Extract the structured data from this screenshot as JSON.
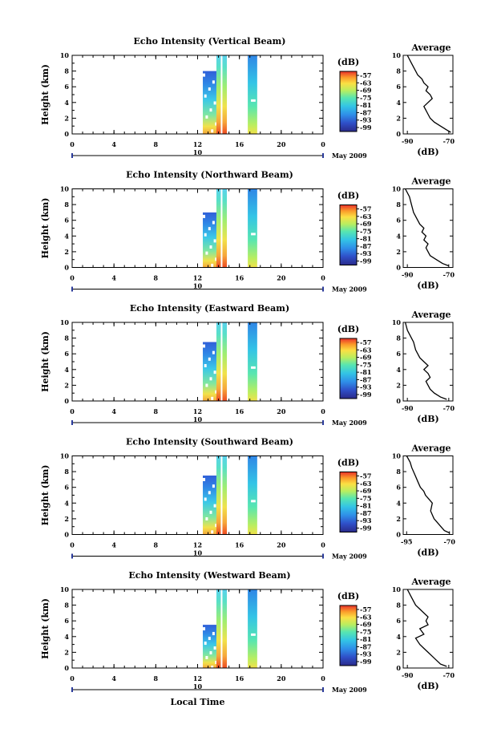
{
  "chart_data": [
    {
      "type": "heatmap",
      "title": "Echo Intensity (Vertical Beam)",
      "ylabel": "Height (km)",
      "ylim": [
        0,
        10
      ],
      "yticks": [
        "0",
        "2",
        "4",
        "6",
        "8",
        "10"
      ],
      "xlim": [
        0,
        24
      ],
      "xticks": [
        "0",
        "4",
        "8",
        "12",
        "16",
        "20",
        "0"
      ],
      "date_label": "10",
      "month_label": "May 2009",
      "colorbar_unit": "(dB)",
      "colorbar_ticks": [
        "-57",
        "-63",
        "-69",
        "-75",
        "-81",
        "-87",
        "-93",
        "-99"
      ],
      "color_scale": [
        "#2a2a8a",
        "#2f4fc8",
        "#2f8fe8",
        "#33c4e6",
        "#58e6b0",
        "#b8ee60",
        "#fbe044",
        "#fb9a2a",
        "#e8312a"
      ],
      "data_segments": [
        {
          "start_hour": 12.5,
          "end_hour": 13.8,
          "max_height_km": 8.0
        },
        {
          "start_hour": 13.8,
          "end_hour": 14.8,
          "max_height_km": 10.0
        },
        {
          "start_hour": 16.8,
          "end_hour": 17.7,
          "max_height_km": 10.0
        }
      ],
      "profile": {
        "title": "Average",
        "xlabel": "(dB)",
        "xlim": [
          -92,
          -68
        ],
        "xticks": [
          "-90",
          "-70"
        ],
        "ylim": [
          0,
          10
        ],
        "yticks": [
          "0",
          "2",
          "4",
          "6",
          "8",
          "10"
        ],
        "x": [
          -69,
          -71,
          -74,
          -77,
          -79,
          -80,
          -81,
          -82,
          -80,
          -78,
          -79,
          -81,
          -80,
          -82,
          -83,
          -85,
          -86,
          -88,
          -90
        ],
        "y": [
          0.2,
          0.5,
          1.0,
          1.5,
          2.0,
          2.5,
          3.0,
          3.5,
          4.0,
          4.5,
          5.0,
          5.5,
          6.0,
          6.5,
          7.0,
          7.5,
          8.0,
          9.0,
          10.0
        ]
      }
    },
    {
      "type": "heatmap",
      "title": "Echo Intensity (Northward Beam)",
      "ylabel": "Height (km)",
      "ylim": [
        0,
        10
      ],
      "yticks": [
        "0",
        "2",
        "4",
        "6",
        "8",
        "10"
      ],
      "xlim": [
        0,
        24
      ],
      "xticks": [
        "0",
        "4",
        "8",
        "12",
        "16",
        "20",
        "0"
      ],
      "date_label": "10",
      "month_label": "May 2009",
      "colorbar_unit": "(dB)",
      "colorbar_ticks": [
        "-57",
        "-63",
        "-69",
        "-75",
        "-81",
        "-87",
        "-93",
        "-99"
      ],
      "color_scale": [
        "#2a2a8a",
        "#2f4fc8",
        "#2f8fe8",
        "#33c4e6",
        "#58e6b0",
        "#b8ee60",
        "#fbe044",
        "#fb9a2a",
        "#e8312a"
      ],
      "data_segments": [
        {
          "start_hour": 12.5,
          "end_hour": 13.8,
          "max_height_km": 7.0
        },
        {
          "start_hour": 13.8,
          "end_hour": 14.8,
          "max_height_km": 10.0
        },
        {
          "start_hour": 16.8,
          "end_hour": 17.7,
          "max_height_km": 10.0
        }
      ],
      "profile": {
        "title": "Average",
        "xlabel": "(dB)",
        "xlim": [
          -92,
          -68
        ],
        "xticks": [
          "-90",
          "-70"
        ],
        "ylim": [
          0,
          10
        ],
        "yticks": [
          "0",
          "2",
          "4",
          "6",
          "8",
          "10"
        ],
        "x": [
          -70,
          -73,
          -76,
          -79,
          -80,
          -81,
          -80,
          -82,
          -81,
          -83,
          -82,
          -84,
          -85,
          -86,
          -87,
          -88,
          -89,
          -91
        ],
        "y": [
          0.2,
          0.5,
          1.0,
          1.5,
          2.0,
          2.5,
          3.0,
          3.5,
          4.0,
          4.5,
          5.0,
          5.5,
          6.0,
          6.5,
          7.0,
          8.0,
          9.0,
          10.0
        ]
      }
    },
    {
      "type": "heatmap",
      "title": "Echo Intensity (Eastward Beam)",
      "ylabel": "Height (km)",
      "ylim": [
        0,
        10
      ],
      "yticks": [
        "0",
        "2",
        "4",
        "6",
        "8",
        "10"
      ],
      "xlim": [
        0,
        24
      ],
      "xticks": [
        "0",
        "4",
        "8",
        "12",
        "16",
        "20",
        "0"
      ],
      "date_label": "10",
      "month_label": "May 2009",
      "colorbar_unit": "(dB)",
      "colorbar_ticks": [
        "-57",
        "-63",
        "-69",
        "-75",
        "-81",
        "-87",
        "-93",
        "-99"
      ],
      "color_scale": [
        "#2a2a8a",
        "#2f4fc8",
        "#2f8fe8",
        "#33c4e6",
        "#58e6b0",
        "#b8ee60",
        "#fbe044",
        "#fb9a2a",
        "#e8312a"
      ],
      "data_segments": [
        {
          "start_hour": 12.5,
          "end_hour": 13.8,
          "max_height_km": 7.5
        },
        {
          "start_hour": 13.8,
          "end_hour": 14.8,
          "max_height_km": 10.0
        },
        {
          "start_hour": 16.8,
          "end_hour": 17.7,
          "max_height_km": 10.0
        }
      ],
      "profile": {
        "title": "Average",
        "xlabel": "(dB)",
        "xlim": [
          -92,
          -68
        ],
        "xticks": [
          "-90",
          "-70"
        ],
        "ylim": [
          0,
          10
        ],
        "yticks": [
          "0",
          "2",
          "4",
          "6",
          "8",
          "10"
        ],
        "x": [
          -71,
          -74,
          -77,
          -79,
          -80,
          -81,
          -79,
          -80,
          -82,
          -80,
          -82,
          -84,
          -85,
          -86,
          -87,
          -88,
          -90,
          -91
        ],
        "y": [
          0.2,
          0.5,
          1.0,
          1.5,
          2.0,
          2.5,
          3.0,
          3.5,
          4.0,
          4.5,
          5.0,
          5.5,
          6.0,
          6.5,
          7.5,
          8.0,
          9.0,
          10.0
        ]
      }
    },
    {
      "type": "heatmap",
      "title": "Echo Intensity (Southward Beam)",
      "ylabel": "Height (km)",
      "ylim": [
        0,
        10
      ],
      "yticks": [
        "0",
        "2",
        "4",
        "6",
        "8",
        "10"
      ],
      "xlim": [
        0,
        24
      ],
      "xticks": [
        "0",
        "4",
        "8",
        "12",
        "16",
        "20",
        "0"
      ],
      "date_label": "10",
      "month_label": "May 2009",
      "colorbar_unit": "(dB)",
      "colorbar_ticks": [
        "-57",
        "-63",
        "-69",
        "-75",
        "-81",
        "-87",
        "-93",
        "-99"
      ],
      "color_scale": [
        "#2a2a8a",
        "#2f4fc8",
        "#2f8fe8",
        "#33c4e6",
        "#58e6b0",
        "#b8ee60",
        "#fbe044",
        "#fb9a2a",
        "#e8312a"
      ],
      "data_segments": [
        {
          "start_hour": 12.5,
          "end_hour": 13.8,
          "max_height_km": 7.5
        },
        {
          "start_hour": 13.8,
          "end_hour": 14.8,
          "max_height_km": 10.0
        },
        {
          "start_hour": 16.8,
          "end_hour": 17.7,
          "max_height_km": 10.0
        }
      ],
      "profile": {
        "title": "Average",
        "xlabel": "(dB)",
        "xlim": [
          -97,
          -68
        ],
        "xticks": [
          "-95",
          "-70"
        ],
        "ylim": [
          0,
          10
        ],
        "yticks": [
          "0",
          "2",
          "4",
          "6",
          "8",
          "10"
        ],
        "x": [
          -70,
          -73,
          -75,
          -77,
          -79,
          -80,
          -81,
          -80,
          -82,
          -84,
          -85,
          -87,
          -88,
          -90,
          -92,
          -93,
          -95
        ],
        "y": [
          0.2,
          0.5,
          1.0,
          1.5,
          2.0,
          2.5,
          3.0,
          4.0,
          4.5,
          5.0,
          5.5,
          6.0,
          6.5,
          7.5,
          8.5,
          9.2,
          10.0
        ]
      }
    },
    {
      "type": "heatmap",
      "title": "Echo Intensity (Westward Beam)",
      "ylabel": "Height (km)",
      "xlabel": "Local Time",
      "ylim": [
        0,
        10
      ],
      "yticks": [
        "0",
        "2",
        "4",
        "6",
        "8",
        "10"
      ],
      "xlim": [
        0,
        24
      ],
      "xticks": [
        "0",
        "4",
        "8",
        "12",
        "16",
        "20",
        "0"
      ],
      "date_label": "10",
      "month_label": "May 2009",
      "colorbar_unit": "(dB)",
      "colorbar_ticks": [
        "-57",
        "-63",
        "-69",
        "-75",
        "-81",
        "-87",
        "-93",
        "-99"
      ],
      "color_scale": [
        "#2a2a8a",
        "#2f4fc8",
        "#2f8fe8",
        "#33c4e6",
        "#58e6b0",
        "#b8ee60",
        "#fbe044",
        "#fb9a2a",
        "#e8312a"
      ],
      "data_segments": [
        {
          "start_hour": 12.5,
          "end_hour": 13.8,
          "max_height_km": 5.5
        },
        {
          "start_hour": 13.8,
          "end_hour": 14.8,
          "max_height_km": 10.0
        },
        {
          "start_hour": 16.8,
          "end_hour": 17.7,
          "max_height_km": 10.0
        }
      ],
      "profile": {
        "title": "Average",
        "xlabel": "(dB)",
        "xlim": [
          -92,
          -68
        ],
        "xticks": [
          "-90",
          "-70"
        ],
        "ylim": [
          0,
          10
        ],
        "yticks": [
          "0",
          "2",
          "4",
          "6",
          "8",
          "10"
        ],
        "x": [
          -71,
          -74,
          -76,
          -78,
          -80,
          -82,
          -84,
          -86,
          -82,
          -84,
          -80,
          -81,
          -80,
          -82,
          -84,
          -86,
          -88,
          -90
        ],
        "y": [
          0.2,
          0.5,
          1.0,
          1.5,
          2.0,
          2.5,
          3.0,
          3.8,
          4.3,
          5.0,
          5.5,
          6.0,
          6.5,
          7.0,
          7.5,
          8.0,
          9.0,
          10.0
        ]
      }
    }
  ]
}
